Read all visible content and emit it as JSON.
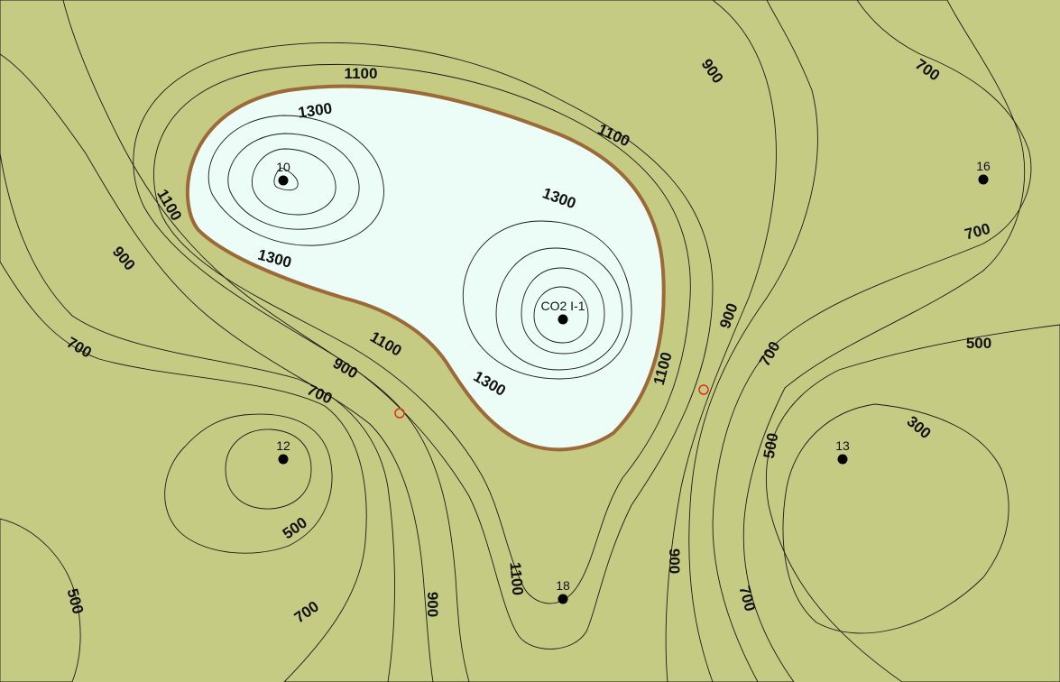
{
  "map": {
    "colors": {
      "band_300_500": "#79c274",
      "band_500_600": "#8fc486",
      "band_600_700": "#c6cb84",
      "band_700_800": "#e4cc2e",
      "band_800_900": "#f0b309",
      "band_900_1000": "#cc9f15",
      "band_1000_1100": "#d9bd63",
      "band_1100_1200": "#f0dca2",
      "band_1200_1300": "#fdf0cf",
      "band_1300_1400": "#ecfcf6",
      "band_1400_1500": "#cff6f6",
      "band_1500_1600": "#aceff3",
      "band_1600_1700": "#86e2ef",
      "band_peak": "#56c6e3",
      "highlight_contour": "#9b6a38",
      "marker_ring": "#e03020"
    },
    "contour_labels": [
      {
        "text": "1100"
      },
      {
        "text": "1300"
      },
      {
        "text": "1100"
      },
      {
        "text": "1300"
      },
      {
        "text": "1100"
      },
      {
        "text": "1300"
      },
      {
        "text": "900"
      },
      {
        "text": "900"
      },
      {
        "text": "700"
      },
      {
        "text": "700"
      },
      {
        "text": "700"
      },
      {
        "text": "900"
      },
      {
        "text": "1100"
      },
      {
        "text": "1300"
      },
      {
        "text": "900"
      },
      {
        "text": "700"
      },
      {
        "text": "500"
      },
      {
        "text": "1100"
      },
      {
        "text": "700"
      },
      {
        "text": "500"
      },
      {
        "text": "300"
      },
      {
        "text": "500"
      },
      {
        "text": "900"
      },
      {
        "text": "1100"
      },
      {
        "text": "900"
      },
      {
        "text": "700"
      },
      {
        "text": "700"
      },
      {
        "text": "500"
      }
    ],
    "wells": [
      {
        "name": "10"
      },
      {
        "name": "16"
      },
      {
        "name": "CO2 I-1"
      },
      {
        "name": "12"
      },
      {
        "name": "13"
      },
      {
        "name": "18"
      }
    ],
    "markers": [
      {
        "name": "open-circle-1"
      },
      {
        "name": "open-circle-2"
      }
    ]
  }
}
